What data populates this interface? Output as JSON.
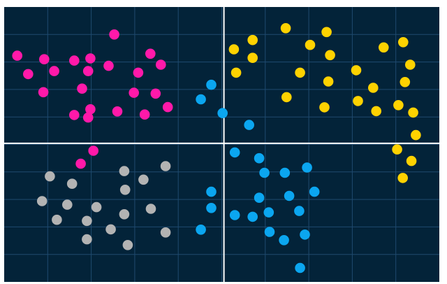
{
  "chart_data": {
    "type": "scatter",
    "title": "",
    "xlabel": "",
    "ylabel": "",
    "xlim": [
      0,
      100
    ],
    "ylim": [
      0,
      100
    ],
    "grid": true,
    "axes": {
      "x_axis_at": 50.5,
      "y_axis_at": 50.4
    },
    "colors": {
      "background": "#032339",
      "grid": "#1f4a6f",
      "axis": "#ffffff",
      "magenta": "#ff19a9",
      "yellow": "#ffd200",
      "blue": "#0ba6f0",
      "gray": "#b3b3b3"
    },
    "series": [
      {
        "color_key": "magenta",
        "points": [
          [
            3.0,
            82.3
          ],
          [
            5.5,
            75.6
          ],
          [
            9.2,
            81.0
          ],
          [
            11.5,
            76.7
          ],
          [
            9.0,
            69.0
          ],
          [
            16.1,
            80.5
          ],
          [
            19.3,
            76.7
          ],
          [
            19.8,
            81.3
          ],
          [
            17.9,
            70.3
          ],
          [
            24.0,
            78.6
          ],
          [
            25.3,
            90.0
          ],
          [
            33.6,
            83.0
          ],
          [
            30.8,
            76.1
          ],
          [
            36.0,
            79.0
          ],
          [
            29.8,
            68.8
          ],
          [
            34.8,
            68.5
          ],
          [
            19.8,
            62.8
          ],
          [
            16.1,
            60.7
          ],
          [
            19.3,
            59.8
          ],
          [
            26.0,
            62.0
          ],
          [
            32.3,
            60.9
          ],
          [
            37.6,
            63.6
          ],
          [
            20.5,
            47.7
          ],
          [
            17.6,
            43.0
          ]
        ]
      },
      {
        "color_key": "yellow",
        "points": [
          [
            52.8,
            84.6
          ],
          [
            57.1,
            88.0
          ],
          [
            64.7,
            92.3
          ],
          [
            57.1,
            81.5
          ],
          [
            53.3,
            76.1
          ],
          [
            74.1,
            90.9
          ],
          [
            70.3,
            86.2
          ],
          [
            74.9,
            82.5
          ],
          [
            87.2,
            85.3
          ],
          [
            91.7,
            87.2
          ],
          [
            93.3,
            79.0
          ],
          [
            68.0,
            76.1
          ],
          [
            74.5,
            72.9
          ],
          [
            80.9,
            77.0
          ],
          [
            84.8,
            70.6
          ],
          [
            92.1,
            72.7
          ],
          [
            64.9,
            67.2
          ],
          [
            73.6,
            63.5
          ],
          [
            81.3,
            65.8
          ],
          [
            85.5,
            62.1
          ],
          [
            90.6,
            64.3
          ],
          [
            94.0,
            61.6
          ],
          [
            94.6,
            53.4
          ],
          [
            90.3,
            48.2
          ],
          [
            93.6,
            44.0
          ],
          [
            91.6,
            37.8
          ]
        ]
      },
      {
        "color_key": "blue",
        "points": [
          [
            47.6,
            71.7
          ],
          [
            45.2,
            66.4
          ],
          [
            50.2,
            61.4
          ],
          [
            56.3,
            57.1
          ],
          [
            53.0,
            47.1
          ],
          [
            58.6,
            45.0
          ],
          [
            59.8,
            39.7
          ],
          [
            64.5,
            39.7
          ],
          [
            69.6,
            41.6
          ],
          [
            47.6,
            32.8
          ],
          [
            58.6,
            30.6
          ],
          [
            65.5,
            31.3
          ],
          [
            71.3,
            32.8
          ],
          [
            47.6,
            26.9
          ],
          [
            53.0,
            24.3
          ],
          [
            57.1,
            23.7
          ],
          [
            60.8,
            25.3
          ],
          [
            67.8,
            25.8
          ],
          [
            45.2,
            19.0
          ],
          [
            61.0,
            18.2
          ],
          [
            64.3,
            15.2
          ],
          [
            69.1,
            17.2
          ],
          [
            68.0,
            5.1
          ]
        ]
      },
      {
        "color_key": "gray",
        "points": [
          [
            10.5,
            38.4
          ],
          [
            15.6,
            35.7
          ],
          [
            8.7,
            29.4
          ],
          [
            14.5,
            28.1
          ],
          [
            21.2,
            27.2
          ],
          [
            27.6,
            40.3
          ],
          [
            32.0,
            37.2
          ],
          [
            37.1,
            42.1
          ],
          [
            27.8,
            33.5
          ],
          [
            12.1,
            22.6
          ],
          [
            19.0,
            22.2
          ],
          [
            27.6,
            24.6
          ],
          [
            33.7,
            26.6
          ],
          [
            24.5,
            19.1
          ],
          [
            37.1,
            18.0
          ],
          [
            19.0,
            15.5
          ],
          [
            28.4,
            13.4
          ]
        ]
      }
    ]
  }
}
